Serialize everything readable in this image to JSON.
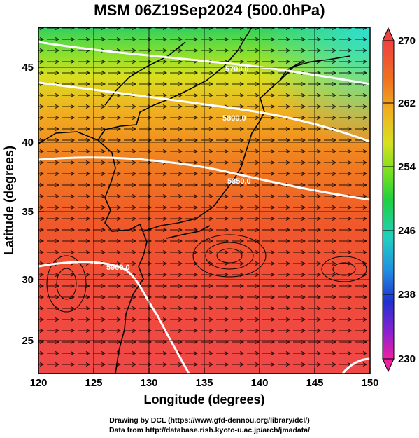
{
  "title": "MSM 06Z19Sep2024 (500.0hPa)",
  "x_axis": {
    "label": "Longitude (degrees)",
    "ticks": [
      "120",
      "125",
      "130",
      "135",
      "140",
      "145",
      "150"
    ]
  },
  "y_axis": {
    "label": "Latitude  (degrees)",
    "ticks": [
      "25",
      "30",
      "35",
      "40",
      "45"
    ]
  },
  "colorbar": {
    "ticks": [
      "270",
      "262",
      "254",
      "246",
      "238",
      "230"
    ],
    "colors": [
      "#f0207a",
      "#b020d0",
      "#3020d0",
      "#2090e0",
      "#20d0c0",
      "#20d040",
      "#90e020",
      "#e0e020",
      "#f0a020",
      "#f05020",
      "#f04040"
    ]
  },
  "contours": {
    "labels": [
      "5700.0",
      "5800.0",
      "5850.0",
      "5900.0"
    ]
  },
  "credits": {
    "line1": "Drawing by DCL (https://www.gfd-dennou.org/library/dcl/)",
    "line2": "Data from http://database.rish.kyoto-u.ac.jp/arch/jmadata/"
  },
  "chart_data": {
    "type": "heatmap",
    "title": "MSM 06Z19Sep2024 (500.0hPa)",
    "xlabel": "Longitude (degrees)",
    "ylabel": "Latitude  (degrees)",
    "xlim": [
      120,
      150
    ],
    "ylim": [
      22.4,
      47.6
    ],
    "colorbar_range": [
      230,
      270
    ],
    "colorbar_ticks": [
      230,
      238,
      246,
      254,
      262,
      270
    ],
    "contour_levels": [
      5700,
      5800,
      5850,
      5900
    ],
    "overlays": [
      "geopotential height contours (white)",
      "wind streamlines (black)",
      "coastlines"
    ]
  }
}
